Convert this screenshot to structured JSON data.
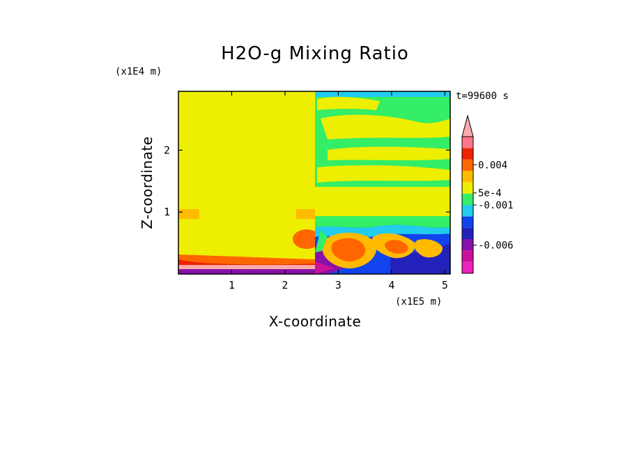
{
  "chart_data": {
    "type": "heatmap",
    "title": "H2O-g Mixing Ratio",
    "xlabel": "X-coordinate",
    "ylabel": "Z-coordinate",
    "x_unit": "(x1E5 m)",
    "y_unit": "(x1E4 m)",
    "time_label": "t=99600 s",
    "xlim": [
      0,
      5.1
    ],
    "ylim": [
      0,
      2.95
    ],
    "x_ticks": [
      {
        "value": 1,
        "label": "1"
      },
      {
        "value": 2,
        "label": "2"
      },
      {
        "value": 3,
        "label": "3"
      },
      {
        "value": 4,
        "label": "4"
      },
      {
        "value": 5,
        "label": "5"
      }
    ],
    "y_ticks": [
      {
        "value": 1,
        "label": "1"
      },
      {
        "value": 2,
        "label": "2"
      }
    ],
    "colorbar": {
      "colors": [
        "#ee22bb",
        "#cc1199",
        "#8811aa",
        "#2222bb",
        "#1144ee",
        "#22ccee",
        "#33ee66",
        "#eeee00",
        "#ffbb00",
        "#ff6600",
        "#ee2200",
        "#ff7788",
        "#ffaaaa"
      ],
      "labels": [
        {
          "text": "0.004",
          "value": 0.004
        },
        {
          "text": "5e-4",
          "value": 0.0005
        },
        {
          "text": "-0.001",
          "value": -0.001
        },
        {
          "text": "-0.006",
          "value": -0.006
        }
      ]
    },
    "regions": [
      {
        "name": "left-domain",
        "x": [
          0,
          2.55
        ],
        "z": [
          0.05,
          2.95
        ],
        "value_color": "#eeee00"
      },
      {
        "name": "right-lower-mixing",
        "x": [
          2.55,
          5.1
        ],
        "z": [
          0,
          0.95
        ],
        "value_color": "#1144ee"
      },
      {
        "name": "right-mid",
        "x": [
          2.55,
          5.1
        ],
        "z": [
          0.95,
          1.35
        ],
        "value_color": "#eeee00"
      },
      {
        "name": "right-upper",
        "x": [
          2.55,
          5.1
        ],
        "z": [
          1.35,
          2.95
        ],
        "value_color": "#33ee66"
      }
    ],
    "grid": false,
    "legend": "right"
  }
}
